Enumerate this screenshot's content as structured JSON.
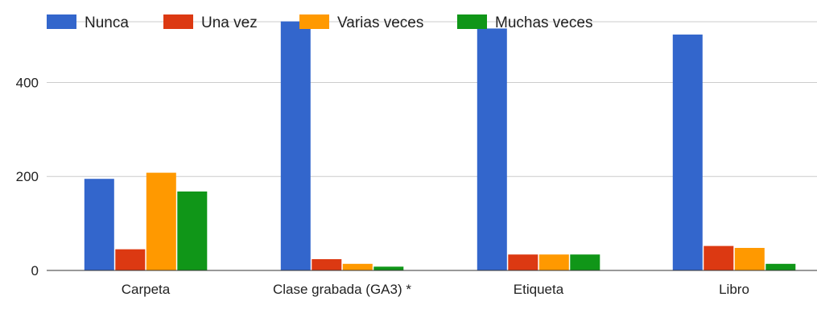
{
  "chart_data": {
    "type": "bar",
    "categories": [
      "Carpeta",
      "Clase grabada (GA3) *",
      "Etiqueta",
      "Libro"
    ],
    "series": [
      {
        "name": "Nunca",
        "color": "#3366cc",
        "values": [
          195,
          530,
          515,
          502
        ]
      },
      {
        "name": "Una vez",
        "color": "#dc3912",
        "values": [
          45,
          24,
          34,
          52
        ]
      },
      {
        "name": "Varias veces",
        "color": "#ff9900",
        "values": [
          208,
          14,
          34,
          48
        ]
      },
      {
        "name": "Muchas veces",
        "color": "#109618",
        "values": [
          168,
          8,
          34,
          14
        ]
      }
    ],
    "y_ticks": [
      0,
      200,
      400
    ],
    "ylim": [
      0,
      555
    ],
    "legend_position": "top-left",
    "grid": true
  }
}
